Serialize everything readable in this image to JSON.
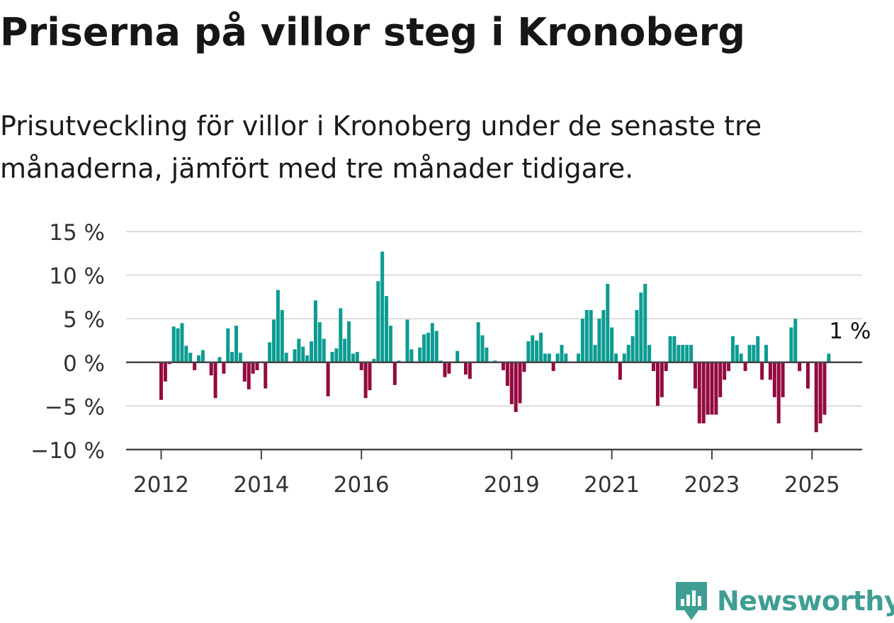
{
  "header": {
    "title": "Priserna på villor steg i Kronoberg",
    "subtitle_line1": "Prisutveckling för villor i Kronoberg under de senaste tre",
    "subtitle_line2": "månaderna, jämfört med tre månader tidigare."
  },
  "brand": {
    "name": "Newsworthy",
    "icon": "newsworthy-logo-icon",
    "color": "#3f9e94"
  },
  "colors": {
    "positive": "#0c9c91",
    "negative": "#940a3f",
    "grid": "#dcdcdc",
    "axis": "#444444"
  },
  "chart_data": {
    "type": "bar",
    "title": "Priserna på villor steg i Kronoberg",
    "subtitle": "Prisutveckling för villor i Kronoberg under de senaste tre månaderna, jämfört med tre månader tidigare.",
    "xlabel": "",
    "ylabel": "",
    "ylim": [
      -10,
      15
    ],
    "y_ticks": [
      -10,
      -5,
      0,
      5,
      10,
      15
    ],
    "y_tick_labels": [
      "−10 %",
      "−5 %",
      "0 %",
      "5 %",
      "10 %",
      "15 %"
    ],
    "x_start": "2012-01",
    "x_ticks": [
      2012,
      2014,
      2016,
      2019,
      2021,
      2023,
      2025
    ],
    "grid": true,
    "last_value_label": "1 %",
    "series": [
      {
        "values": [
          -4.3,
          -2.2,
          -0.2,
          4.1,
          3.9,
          4.5,
          1.9,
          1.1,
          -0.9,
          0.8,
          1.4,
          0,
          -1.5,
          -4.1,
          0.6,
          -1.3,
          3.9,
          1.2,
          4.2,
          1.1,
          -2.2,
          -3.1,
          -1.3,
          -0.9,
          0,
          -3.0,
          2.3,
          4.9,
          8.3,
          6.0,
          1.1,
          0,
          1.5,
          2.7,
          1.8,
          0.8,
          2.4,
          7.1,
          4.6,
          2.7,
          -3.9,
          1.2,
          1.6,
          6.2,
          2.7,
          4.7,
          1.0,
          1.2,
          -0.9,
          -4.1,
          -3.2,
          0.4,
          9.3,
          12.7,
          7.6,
          4.2,
          -2.6,
          0.2,
          0,
          4.9,
          1.5,
          0,
          1.7,
          3.2,
          3.4,
          4.5,
          3.6,
          0.2,
          -1.7,
          -1.3,
          0,
          1.3,
          0.1,
          -1.4,
          -1.9,
          0,
          4.6,
          3.1,
          1.7,
          0,
          0.2,
          0,
          -0.9,
          -2.7,
          -4.8,
          -5.7,
          -4.7,
          -1.1,
          2.4,
          3.1,
          2.5,
          3.4,
          1.0,
          1.0,
          -1.0,
          1.0,
          2.0,
          1.0,
          0,
          0,
          1.0,
          5.0,
          6.0,
          6.0,
          2.0,
          5.0,
          6.0,
          9.0,
          4.0,
          1.0,
          -2.0,
          1.0,
          2.0,
          3.0,
          6.0,
          8.0,
          9.0,
          2.0,
          -1.0,
          -5.0,
          -4.0,
          -1.0,
          3.0,
          3.0,
          2.0,
          2.0,
          2.0,
          2.0,
          -3.0,
          -7.0,
          -7.0,
          -6.0,
          -6.0,
          -6.0,
          -4.0,
          -2.0,
          -1.0,
          3.0,
          2.0,
          1.0,
          -1.0,
          2.0,
          2.0,
          3.0,
          -2.0,
          2.0,
          -2.0,
          -4.0,
          -7.0,
          -4.0,
          0,
          4.0,
          5.0,
          -1.0,
          0,
          -3.0,
          0,
          -8.0,
          -7.0,
          -6.0,
          1.0
        ]
      }
    ]
  }
}
